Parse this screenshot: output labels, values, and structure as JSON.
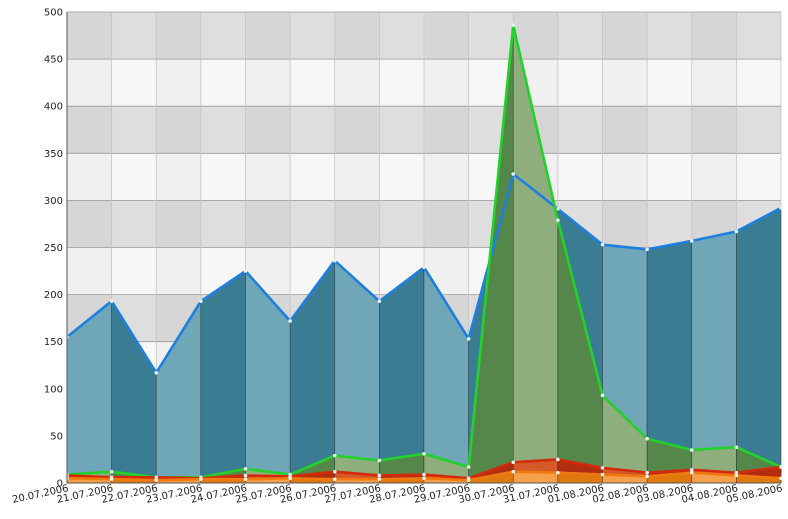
{
  "chart_data": {
    "type": "area",
    "categories": [
      "20.07.2006",
      "21.07.2006",
      "22.07.2006",
      "23.07.2006",
      "24.07.2006",
      "25.07.2006",
      "26.07.2006",
      "27.07.2006",
      "28.07.2006",
      "29.07.2006",
      "30.07.2006",
      "31.07.2006",
      "01.08.2006",
      "02.08.2006",
      "03.08.2006",
      "04.08.2006",
      "05.08.2006"
    ],
    "ylim": [
      0,
      500
    ],
    "yticks": [
      0,
      50,
      100,
      150,
      200,
      250,
      300,
      350,
      400,
      450,
      500
    ],
    "grid": true,
    "series": [
      {
        "values": [
          155,
          193,
          117,
          193,
          225,
          172,
          236,
          193,
          229,
          153,
          328,
          291,
          253,
          248,
          257,
          267,
          292
        ],
        "color": "#1e7fe0",
        "fill_light": "#6fa6b8",
        "fill_dark": "#3a7d93"
      },
      {
        "values": [
          9,
          12,
          6,
          6,
          15,
          9,
          29,
          24,
          31,
          17,
          486,
          279,
          93,
          47,
          35,
          38,
          17
        ],
        "color": "#22d22a",
        "fill_light": "#8fae7e",
        "fill_dark": "#55874a"
      },
      {
        "values": [
          8,
          6,
          6,
          5,
          8,
          7,
          12,
          8,
          9,
          5,
          22,
          25,
          16,
          11,
          14,
          11,
          17
        ],
        "color": "#d42a0c",
        "fill_light": "#d65a28",
        "fill_dark": "#b02d10"
      },
      {
        "values": [
          5,
          4,
          3,
          4,
          4,
          5,
          4,
          4,
          5,
          3,
          12,
          11,
          9,
          7,
          11,
          8,
          5
        ],
        "color": "#f07a10",
        "fill_light": "#f5a04a",
        "fill_dark": "#e07810"
      }
    ]
  }
}
